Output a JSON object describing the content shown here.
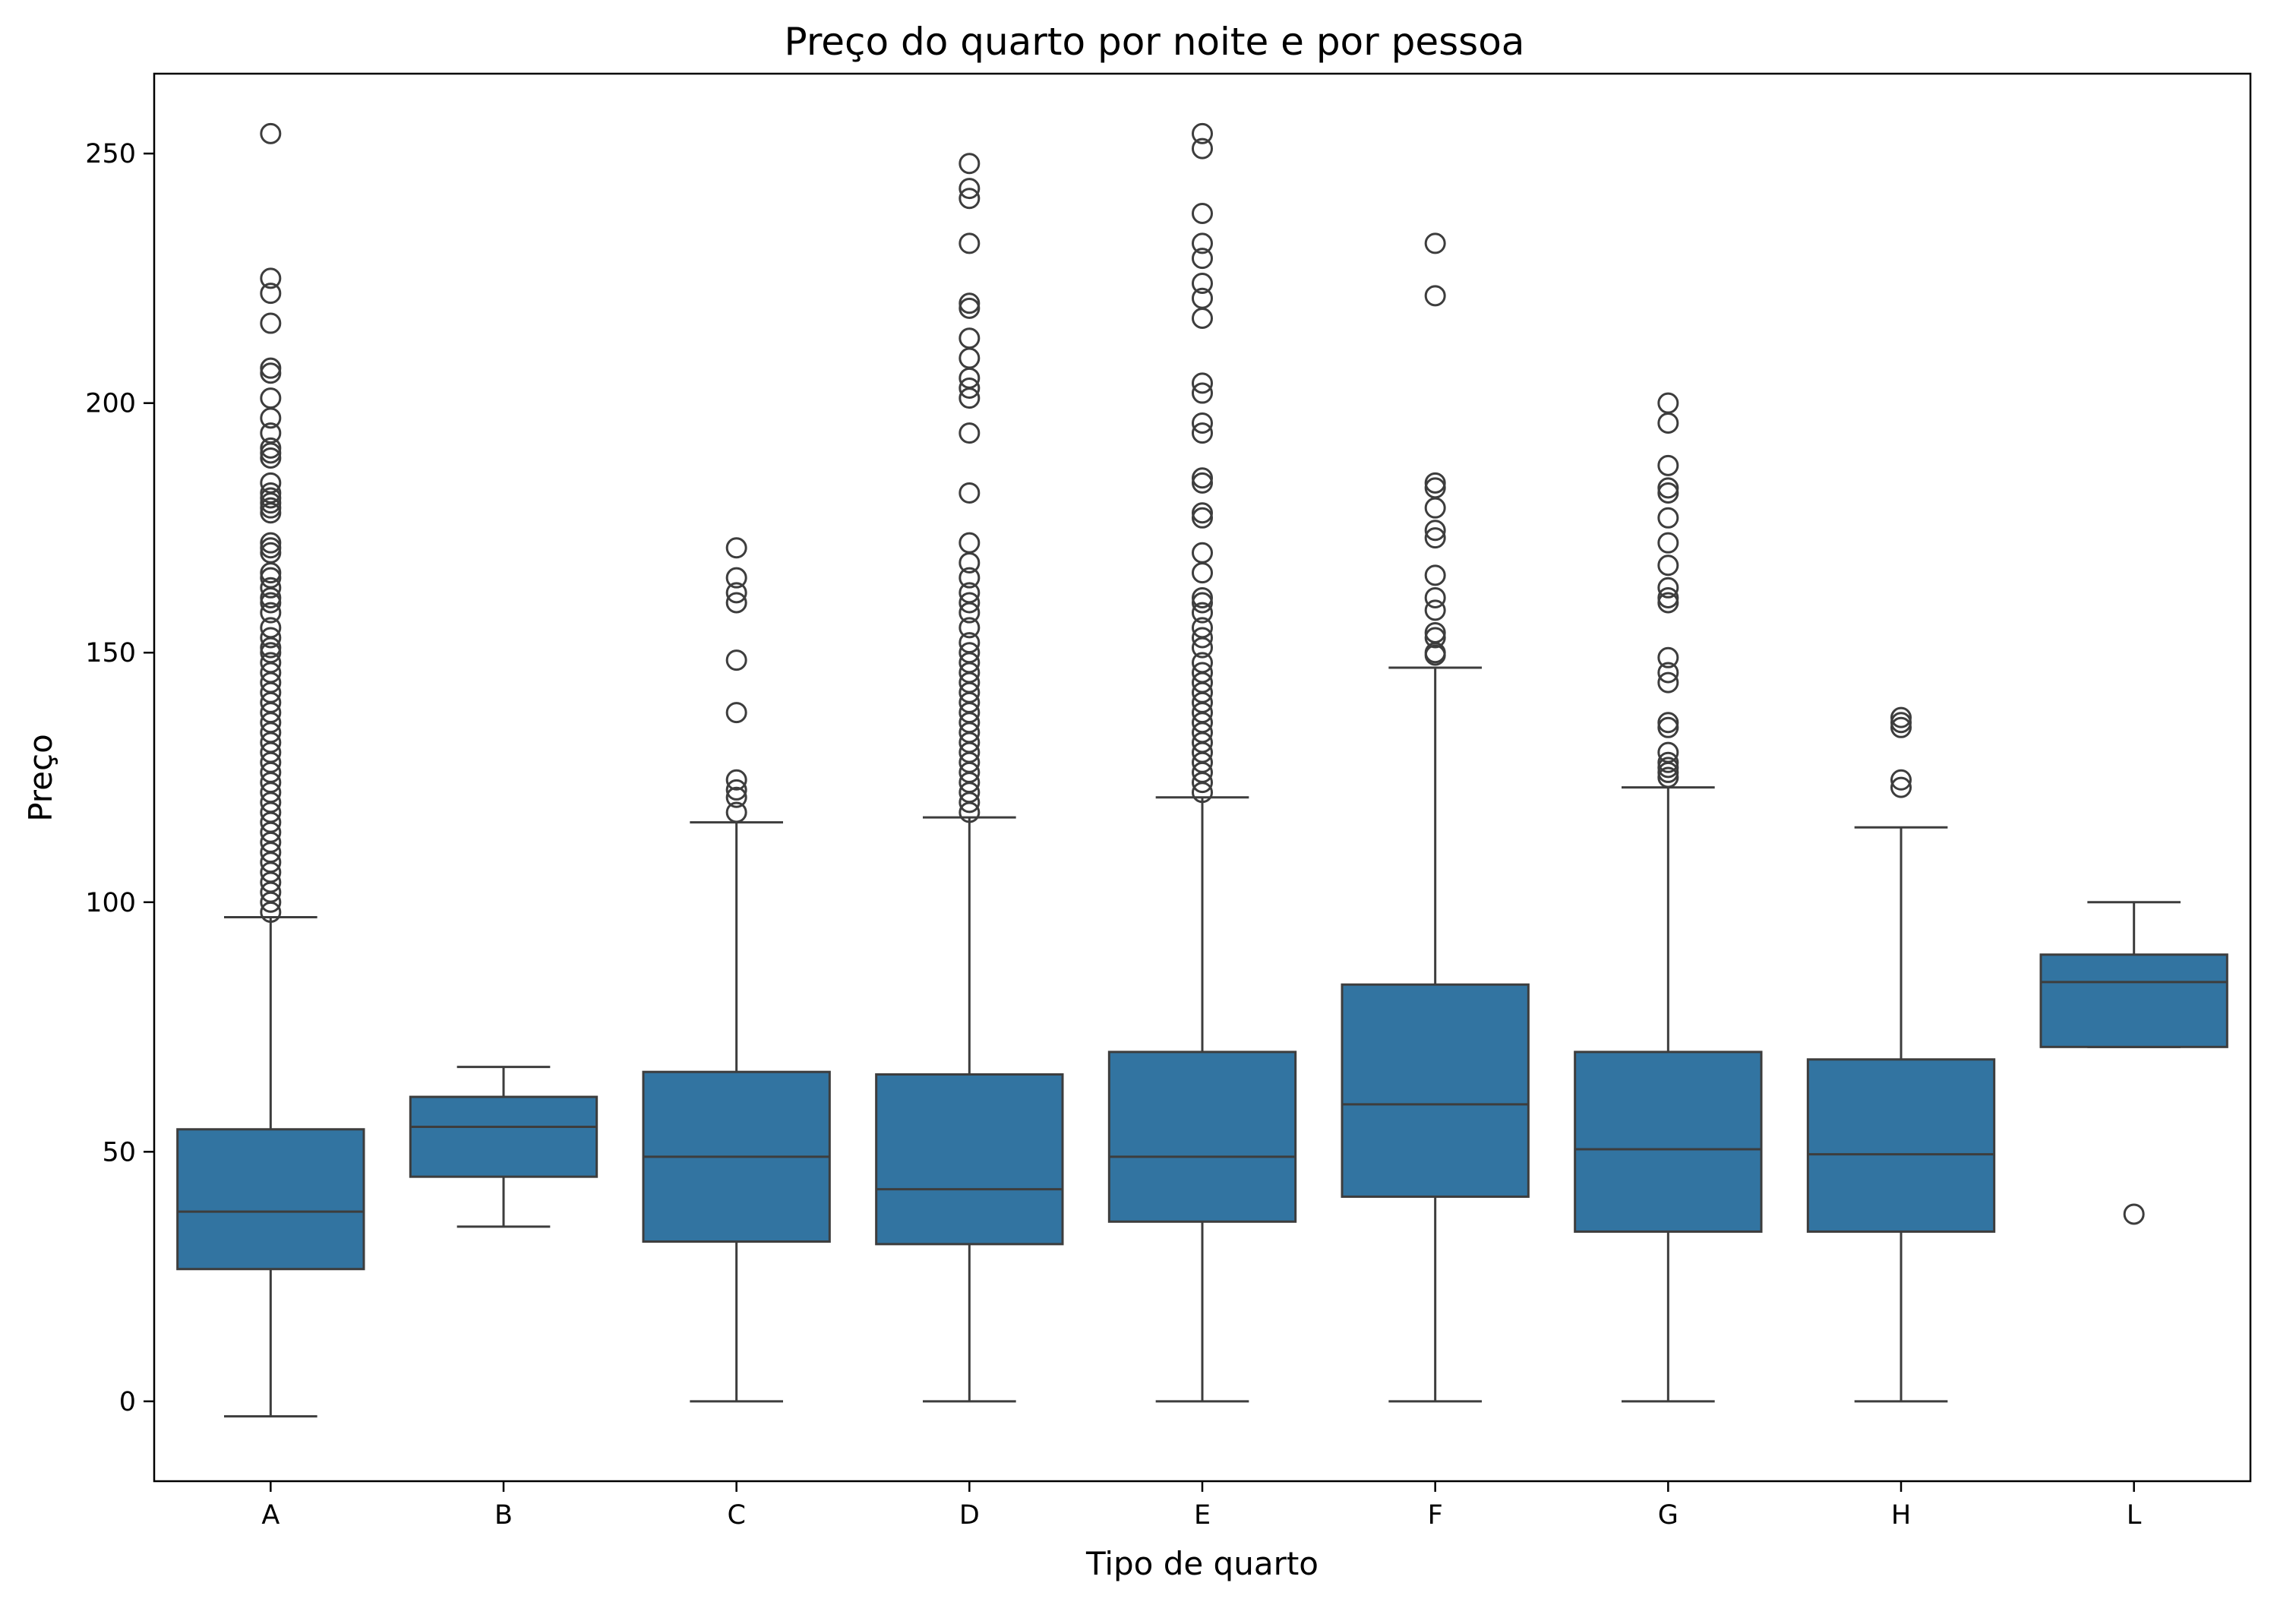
{
  "chart_data": {
    "type": "boxplot",
    "title": "Preço do quarto por noite e por pessoa",
    "xlabel": "Tipo de quarto",
    "ylabel": "Preço",
    "ylim": [
      -16,
      266
    ],
    "yticks": [
      0,
      50,
      100,
      150,
      200,
      250
    ],
    "color": "#3274a1",
    "line_color": "#3d3d3d",
    "grid": false,
    "categories": [
      "A",
      "B",
      "C",
      "D",
      "E",
      "F",
      "G",
      "H",
      "L"
    ],
    "boxes": [
      {
        "category": "A",
        "whisker_low": -3,
        "q1": 26.5,
        "median": 38,
        "q3": 54.5,
        "whisker_high": 97,
        "outliers": [
          254,
          225,
          222,
          216,
          207,
          206,
          201,
          197,
          194,
          191,
          190,
          189,
          184,
          182,
          181,
          180,
          179,
          178,
          172,
          171,
          170,
          166,
          165,
          163,
          161,
          160,
          158,
          155,
          153,
          151,
          150,
          148,
          146,
          144,
          142,
          140,
          138,
          136,
          134,
          132,
          130,
          128,
          126,
          124,
          122,
          120,
          118,
          116,
          114,
          112,
          110,
          108,
          106,
          104,
          102,
          100,
          98
        ]
      },
      {
        "category": "B",
        "whisker_low": 35,
        "q1": 45,
        "median": 55,
        "q3": 61,
        "whisker_high": 67,
        "outliers": []
      },
      {
        "category": "C",
        "whisker_low": 0,
        "q1": 32,
        "median": 49,
        "q3": 66,
        "whisker_high": 116,
        "outliers": [
          171,
          165,
          162,
          160,
          148.5,
          138,
          124.5,
          122.5,
          121,
          118
        ]
      },
      {
        "category": "D",
        "whisker_low": 0,
        "q1": 31.5,
        "median": 42.5,
        "q3": 65.5,
        "whisker_high": 117,
        "outliers": [
          248,
          243,
          241,
          232,
          220,
          219,
          213,
          209,
          205,
          203,
          201,
          194,
          182,
          172,
          168,
          165,
          162,
          160,
          158,
          155,
          152,
          150,
          148,
          146,
          144,
          142,
          140,
          138,
          136,
          134,
          132,
          130,
          128,
          126,
          124,
          122,
          120,
          118
        ]
      },
      {
        "category": "E",
        "whisker_low": 0,
        "q1": 36,
        "median": 49,
        "q3": 70,
        "whisker_high": 121,
        "outliers": [
          254,
          251,
          238,
          232,
          229,
          224,
          221,
          217,
          204,
          202,
          196,
          194,
          185,
          184,
          178,
          177,
          170,
          166,
          161,
          160,
          158,
          155,
          153,
          151,
          148,
          146,
          144,
          142,
          140,
          138,
          136,
          134,
          132,
          130,
          128,
          126,
          124,
          122
        ]
      },
      {
        "category": "F",
        "whisker_low": 0,
        "q1": 41,
        "median": 59.5,
        "q3": 83.5,
        "whisker_high": 147,
        "outliers": [
          232,
          221.5,
          184,
          183,
          179,
          174.5,
          173,
          165.5,
          161,
          158.5,
          154,
          153,
          150,
          149.5
        ]
      },
      {
        "category": "G",
        "whisker_low": 0,
        "q1": 34,
        "median": 50.5,
        "q3": 70,
        "whisker_high": 123,
        "outliers": [
          200,
          196,
          187.5,
          183,
          182,
          177,
          172,
          167.5,
          163,
          161,
          160,
          149,
          146,
          144,
          136,
          135,
          130,
          128,
          127,
          126,
          125
        ]
      },
      {
        "category": "H",
        "whisker_low": 0,
        "q1": 34,
        "median": 49.5,
        "q3": 68.5,
        "whisker_high": 115,
        "outliers": [
          137,
          136,
          135,
          124.5,
          123
        ]
      },
      {
        "category": "L",
        "whisker_low": 71,
        "q1": 71,
        "median": 84,
        "q3": 89.5,
        "whisker_high": 100,
        "outliers": [
          37.5
        ]
      }
    ]
  }
}
